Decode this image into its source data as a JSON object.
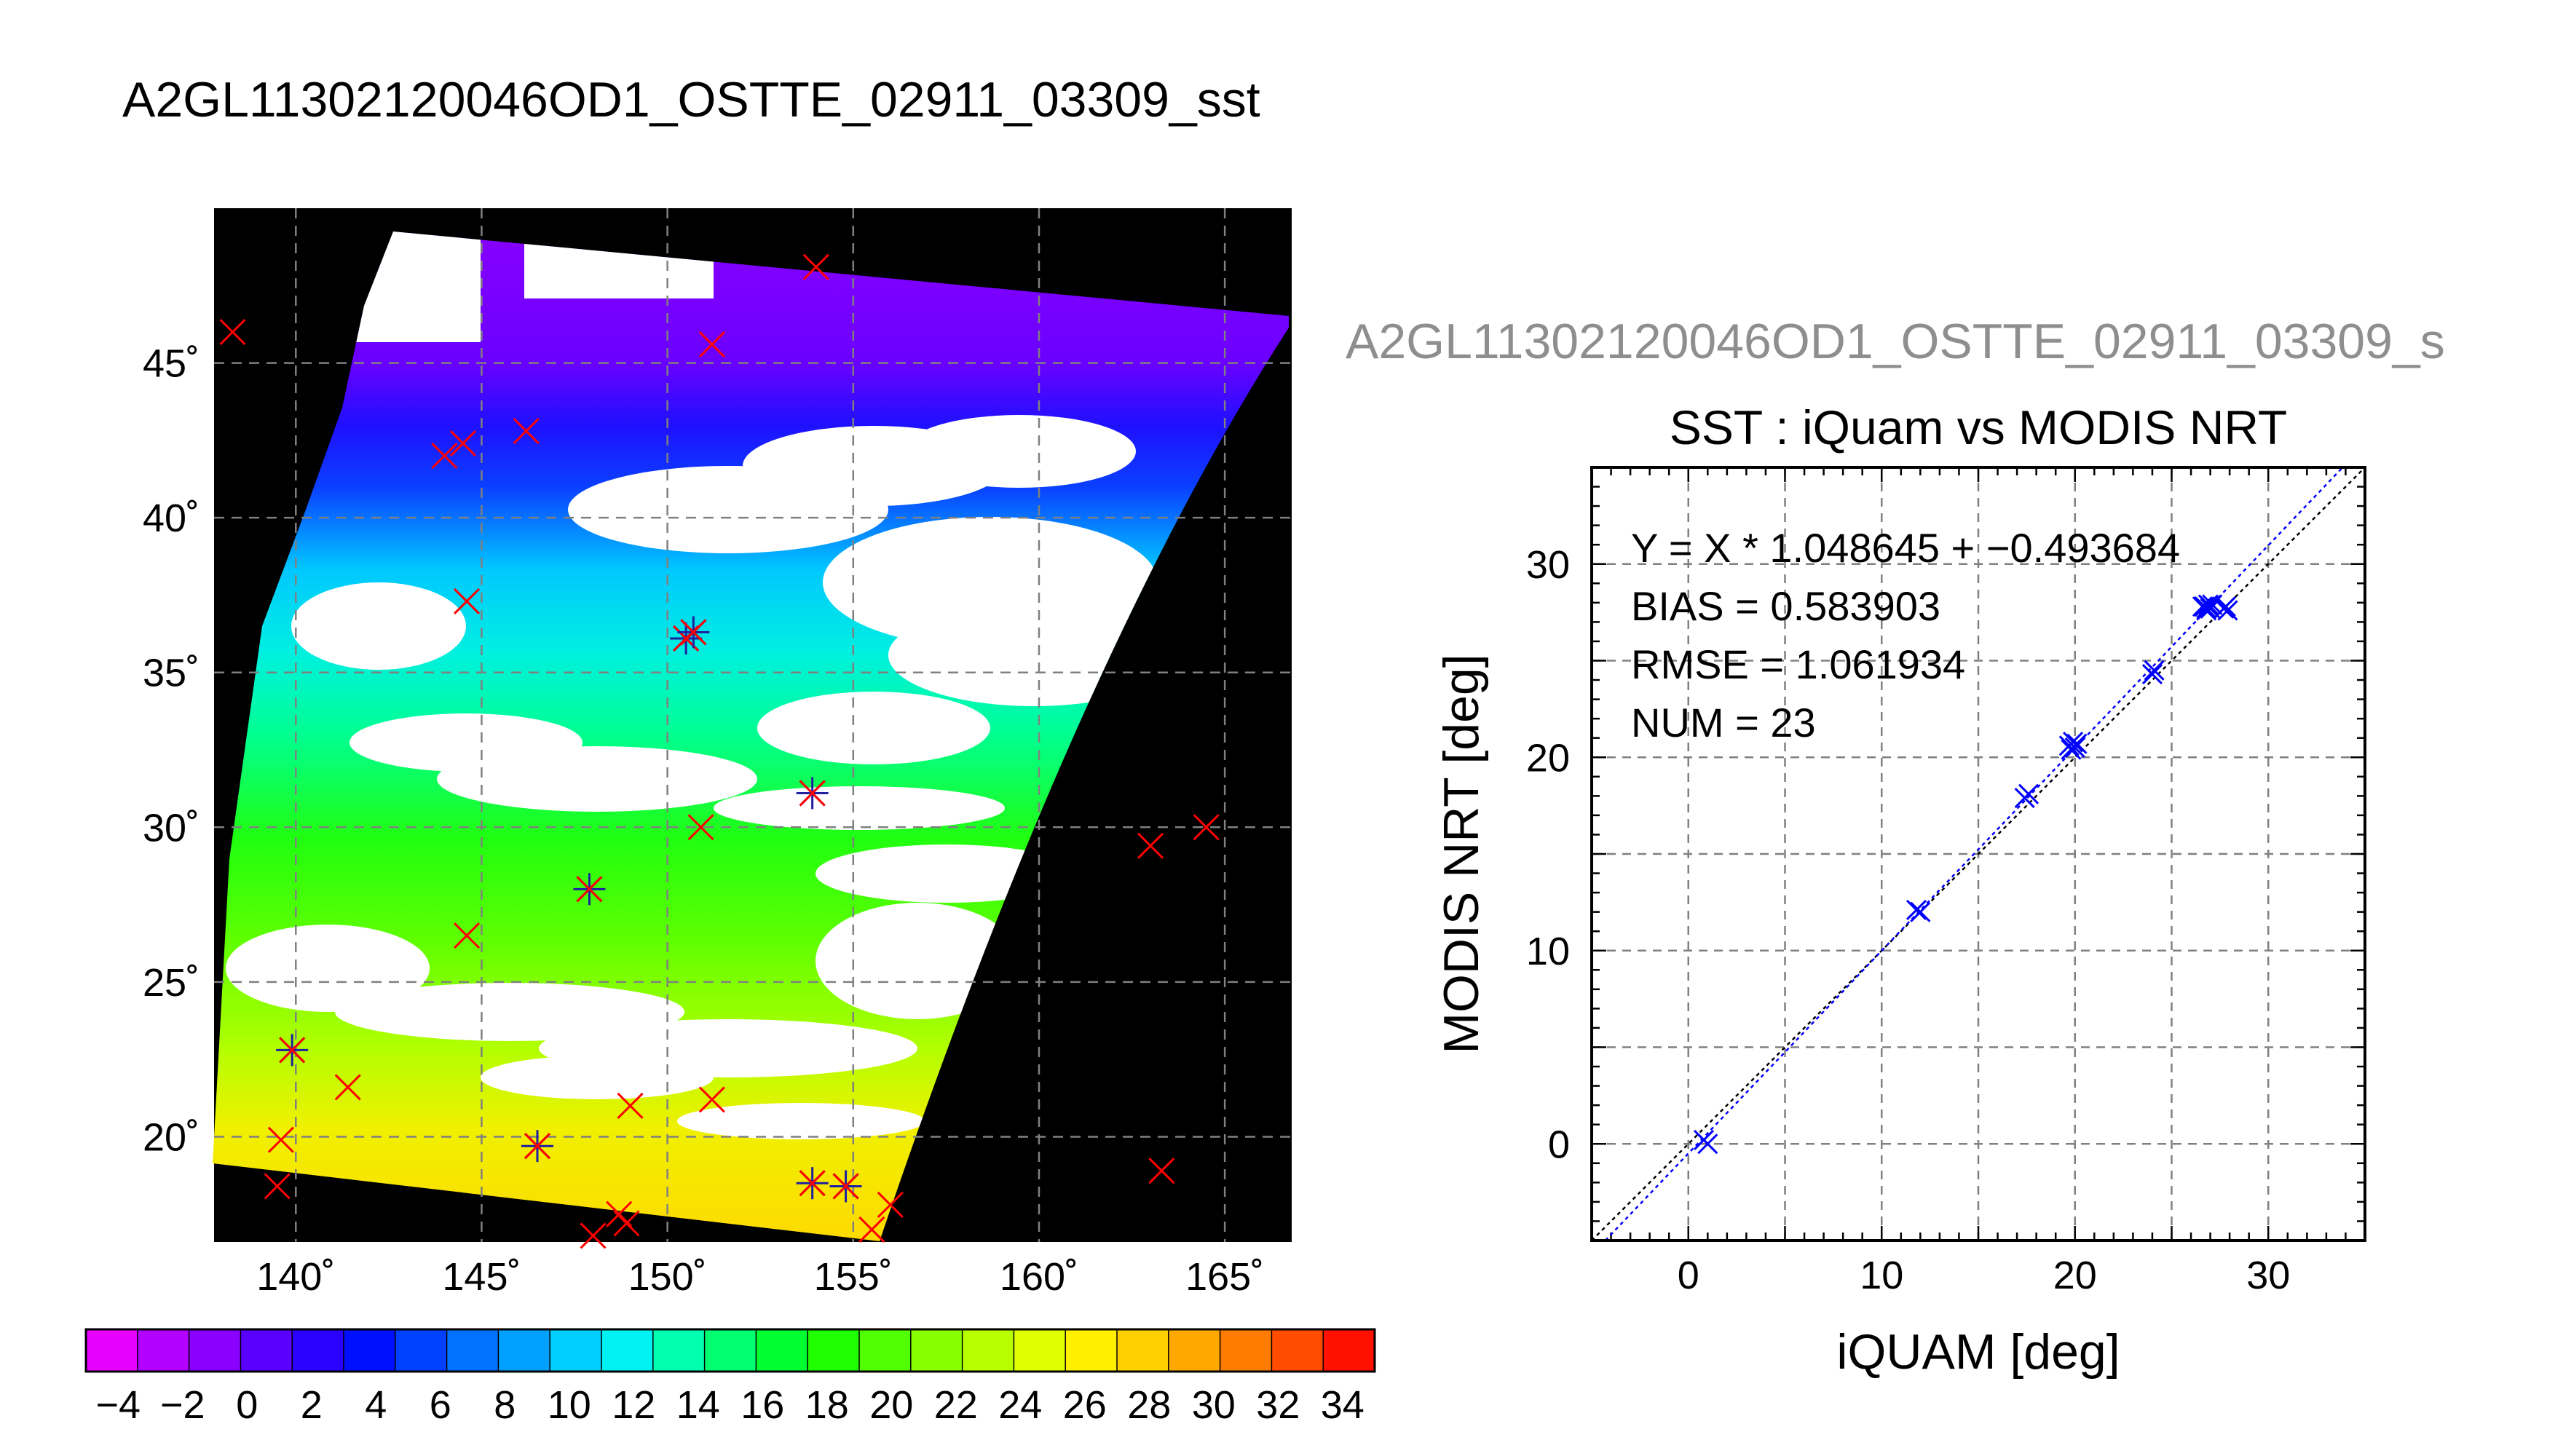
{
  "figure": {
    "title": "A2GL11302120046OD1_OSTTE_02911_03309_sst",
    "ghost_title": "A2GL11302120046OD1_OSTTE_02911_03309_s"
  },
  "colors": {
    "background_black": "#000000",
    "match_marker": "#ff0000",
    "star_marker": "#2020a0",
    "scatter_blue": "#0000ff",
    "grid": "#808080"
  },
  "chart_data": [
    {
      "type": "heatmap",
      "description_source": "map",
      "x_tick_labels": [
        "140˚",
        "145˚",
        "150˚",
        "155˚",
        "160˚",
        "165˚"
      ],
      "x_ticks": [
        140,
        145,
        150,
        155,
        160,
        165
      ],
      "y_tick_labels": [
        "45˚",
        "40˚",
        "35˚",
        "30˚",
        "25˚",
        "20˚"
      ],
      "y_ticks": [
        45,
        40,
        35,
        30,
        25,
        20
      ],
      "xlim": [
        137.8,
        166.8
      ],
      "ylim": [
        16.6,
        50.0
      ],
      "colorbar": {
        "tick_labels": [
          "−4",
          "−2",
          "0",
          "2",
          "4",
          "6",
          "8",
          "10",
          "12",
          "14",
          "16",
          "18",
          "20",
          "22",
          "24",
          "26",
          "28",
          "30",
          "32",
          "34"
        ],
        "range": [
          -5,
          35
        ],
        "colors": [
          "#e800ff",
          "#b300ff",
          "#8a00ff",
          "#5a00ff",
          "#2a00ff",
          "#0010ff",
          "#0040ff",
          "#0072ff",
          "#00a0ff",
          "#00cfff",
          "#00f2f2",
          "#00ffb0",
          "#00ff70",
          "#00ff30",
          "#20ff00",
          "#50ff00",
          "#88ff00",
          "#b8ff00",
          "#e0ff00",
          "#fff000",
          "#ffd000",
          "#ffa800",
          "#ff7c00",
          "#ff4c00",
          "#ff1000"
        ]
      },
      "match_points": [
        {
          "lon": 138.3,
          "lat": 46.0
        },
        {
          "lon": 154.0,
          "lat": 48.1
        },
        {
          "lon": 151.2,
          "lat": 45.6
        },
        {
          "lon": 144.0,
          "lat": 42.0
        },
        {
          "lon": 144.5,
          "lat": 42.4
        },
        {
          "lon": 146.2,
          "lat": 42.8
        },
        {
          "lon": 144.6,
          "lat": 37.3
        },
        {
          "lon": 150.5,
          "lat": 36.1,
          "star": true
        },
        {
          "lon": 150.7,
          "lat": 36.3,
          "star": true
        },
        {
          "lon": 153.9,
          "lat": 31.1,
          "star": true
        },
        {
          "lon": 150.9,
          "lat": 30.0
        },
        {
          "lon": 147.9,
          "lat": 28.0,
          "star": true
        },
        {
          "lon": 144.6,
          "lat": 26.5
        },
        {
          "lon": 139.9,
          "lat": 22.8,
          "star": true
        },
        {
          "lon": 141.4,
          "lat": 21.6
        },
        {
          "lon": 139.6,
          "lat": 19.9
        },
        {
          "lon": 139.5,
          "lat": 18.4
        },
        {
          "lon": 146.5,
          "lat": 19.7,
          "star": true
        },
        {
          "lon": 149.0,
          "lat": 21.0
        },
        {
          "lon": 151.2,
          "lat": 21.2
        },
        {
          "lon": 148.7,
          "lat": 17.5
        },
        {
          "lon": 148.9,
          "lat": 17.2
        },
        {
          "lon": 148.0,
          "lat": 16.8
        },
        {
          "lon": 153.9,
          "lat": 18.5,
          "star": true
        },
        {
          "lon": 154.8,
          "lat": 18.4,
          "star": true
        },
        {
          "lon": 155.5,
          "lat": 17.0
        },
        {
          "lon": 156.0,
          "lat": 17.8
        },
        {
          "lon": 163.0,
          "lat": 29.4
        },
        {
          "lon": 164.5,
          "lat": 30.0
        },
        {
          "lon": 163.3,
          "lat": 18.9
        }
      ]
    },
    {
      "type": "scatter",
      "title": "SST : iQuam vs MODIS NRT",
      "xlabel": "iQUAM [deg]",
      "ylabel": "MODIS NRT [deg]",
      "xlim": [
        -5,
        35
      ],
      "ylim": [
        -5,
        35
      ],
      "x_ticks": [
        0,
        10,
        20,
        30
      ],
      "y_ticks": [
        0,
        10,
        20,
        30
      ],
      "grid": true,
      "annotations": [
        "Y = X * 1.048645 + −0.493684",
        "BIAS = 0.583903",
        "RMSE = 1.061934",
        "NUM = 23"
      ],
      "fit": {
        "slope": 1.048645,
        "intercept": -0.493684
      },
      "points": [
        {
          "x": 0.8,
          "y": 0.2
        },
        {
          "x": 1.0,
          "y": 0.0
        },
        {
          "x": 11.8,
          "y": 12.1
        },
        {
          "x": 12.0,
          "y": 12.0
        },
        {
          "x": 17.4,
          "y": 17.9
        },
        {
          "x": 17.6,
          "y": 18.1
        },
        {
          "x": 19.7,
          "y": 20.6
        },
        {
          "x": 19.9,
          "y": 20.8
        },
        {
          "x": 20.0,
          "y": 20.5
        },
        {
          "x": 20.1,
          "y": 20.7
        },
        {
          "x": 19.8,
          "y": 20.4
        },
        {
          "x": 24.0,
          "y": 24.3
        },
        {
          "x": 24.1,
          "y": 24.5
        },
        {
          "x": 26.6,
          "y": 27.8
        },
        {
          "x": 26.8,
          "y": 27.6
        },
        {
          "x": 26.9,
          "y": 27.9
        },
        {
          "x": 27.0,
          "y": 27.7
        },
        {
          "x": 26.7,
          "y": 27.8
        },
        {
          "x": 27.1,
          "y": 27.9
        },
        {
          "x": 26.8,
          "y": 27.7
        },
        {
          "x": 27.8,
          "y": 27.8
        },
        {
          "x": 27.9,
          "y": 27.6
        },
        {
          "x": 27.7,
          "y": 27.7
        }
      ]
    }
  ]
}
